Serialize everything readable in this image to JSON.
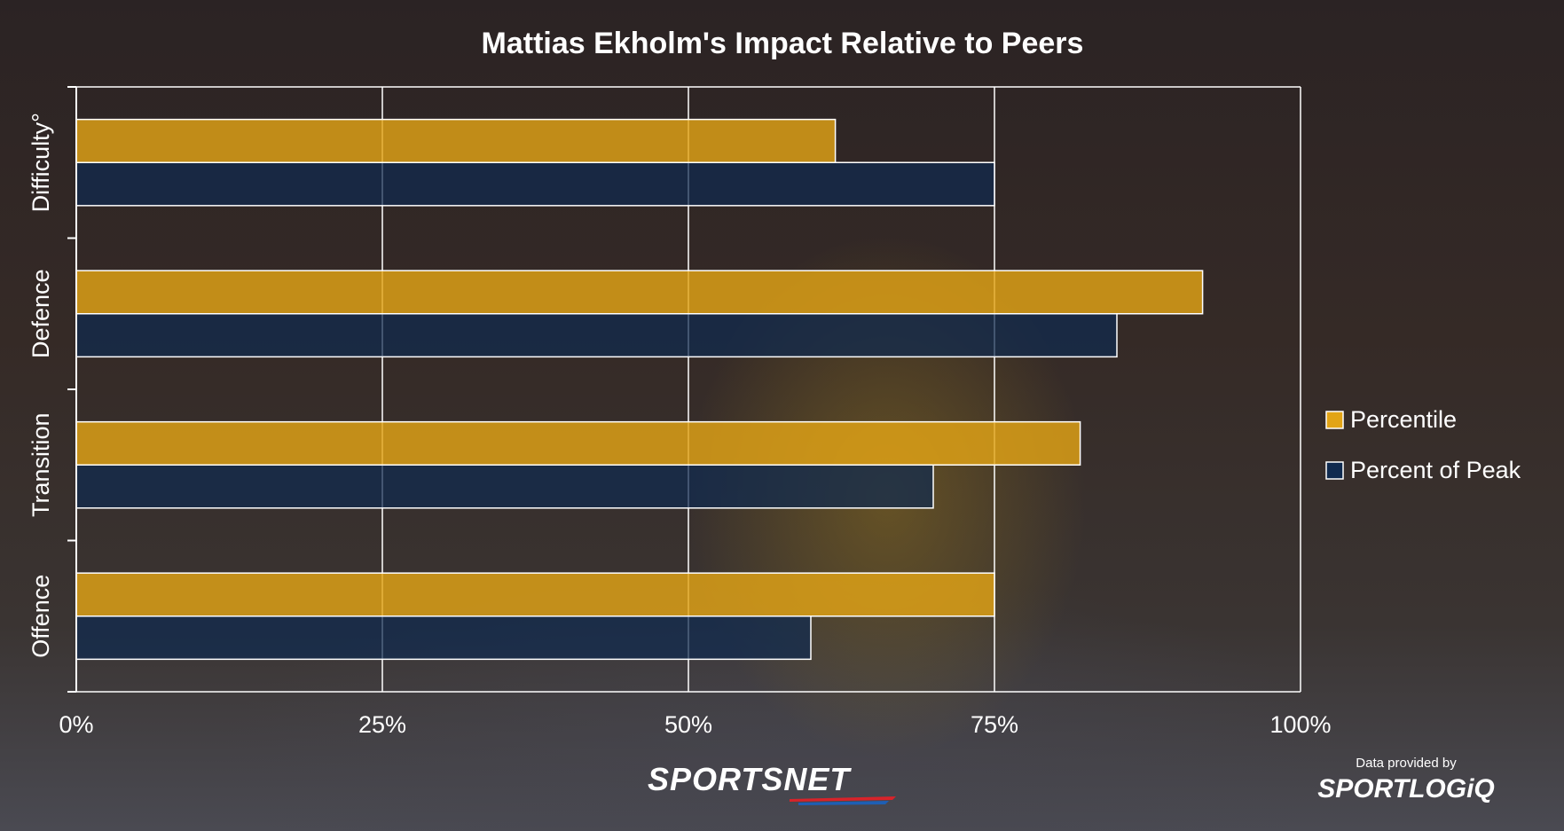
{
  "chart_data": {
    "type": "bar",
    "orientation": "horizontal",
    "title": "Mattias Ekholm's Impact Relative to Peers",
    "categories": [
      "Difficulty°",
      "Defence",
      "Transition",
      "Offence"
    ],
    "series": [
      {
        "name": "Percentile",
        "color": "#e2a416",
        "values": [
          62,
          92,
          82,
          75
        ]
      },
      {
        "name": "Percent of Peak",
        "color": "#0f2a4f",
        "values": [
          75,
          85,
          70,
          60
        ]
      }
    ],
    "x_ticks": [
      "0%",
      "25%",
      "50%",
      "75%",
      "100%"
    ],
    "xlim": [
      0,
      100
    ],
    "grid": true,
    "legend_position": "right"
  },
  "branding": {
    "sportsnet": "SPORTSNET",
    "data_credit": "Data provided by",
    "sportlogiq": "SPORTLOGiQ"
  }
}
